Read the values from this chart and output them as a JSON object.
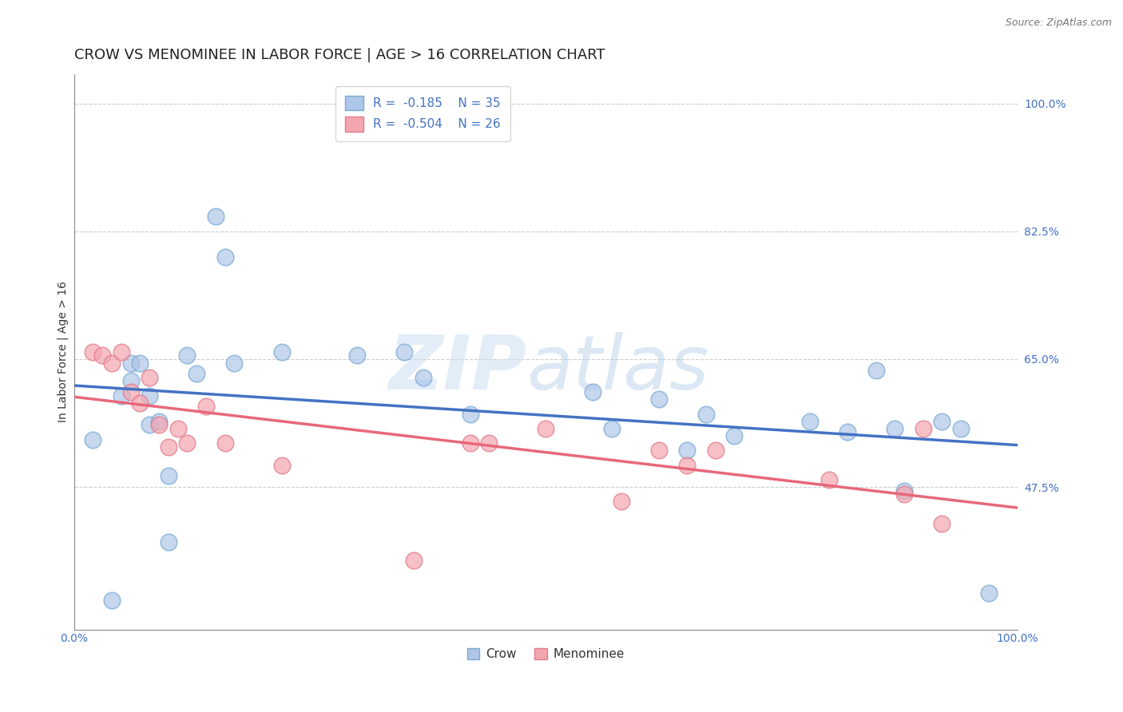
{
  "title": "CROW VS MENOMINEE IN LABOR FORCE | AGE > 16 CORRELATION CHART",
  "source_text": "Source: ZipAtlas.com",
  "ylabel": "In Labor Force | Age > 16",
  "xlim": [
    0.0,
    1.0
  ],
  "ylim": [
    0.28,
    1.04
  ],
  "yticks": [
    0.475,
    0.65,
    0.825,
    1.0
  ],
  "ytick_labels": [
    "47.5%",
    "65.0%",
    "82.5%",
    "100.0%"
  ],
  "xticks": [
    0.0,
    1.0
  ],
  "xtick_labels": [
    "0.0%",
    "100.0%"
  ],
  "crow_R": -0.185,
  "crow_N": 35,
  "menominee_R": -0.504,
  "menominee_N": 26,
  "crow_color": "#aec6e8",
  "crow_edge_color": "#7aaad4",
  "crow_line_color": "#4472c4",
  "menominee_color": "#f4a6b0",
  "menominee_edge_color": "#e07a8a",
  "menominee_line_color": "#e8687a",
  "background_color": "#ffffff",
  "watermark_color": "#d0e4f5",
  "crow_x": [
    0.02,
    0.04,
    0.05,
    0.06,
    0.06,
    0.07,
    0.08,
    0.08,
    0.09,
    0.1,
    0.1,
    0.12,
    0.13,
    0.15,
    0.16,
    0.17,
    0.22,
    0.3,
    0.35,
    0.37,
    0.42,
    0.55,
    0.57,
    0.62,
    0.65,
    0.67,
    0.7,
    0.78,
    0.82,
    0.85,
    0.87,
    0.88,
    0.92,
    0.94,
    0.97
  ],
  "crow_y": [
    0.54,
    0.32,
    0.6,
    0.645,
    0.62,
    0.645,
    0.56,
    0.6,
    0.565,
    0.49,
    0.4,
    0.655,
    0.63,
    0.845,
    0.79,
    0.645,
    0.66,
    0.655,
    0.66,
    0.625,
    0.575,
    0.605,
    0.555,
    0.595,
    0.525,
    0.575,
    0.545,
    0.565,
    0.55,
    0.635,
    0.555,
    0.47,
    0.565,
    0.555,
    0.33
  ],
  "menominee_x": [
    0.02,
    0.03,
    0.04,
    0.05,
    0.06,
    0.07,
    0.08,
    0.09,
    0.1,
    0.11,
    0.12,
    0.14,
    0.16,
    0.22,
    0.36,
    0.42,
    0.44,
    0.5,
    0.58,
    0.62,
    0.65,
    0.68,
    0.8,
    0.88,
    0.9,
    0.92
  ],
  "menominee_y": [
    0.66,
    0.655,
    0.645,
    0.66,
    0.605,
    0.59,
    0.625,
    0.56,
    0.53,
    0.555,
    0.535,
    0.585,
    0.535,
    0.505,
    0.375,
    0.535,
    0.535,
    0.555,
    0.455,
    0.525,
    0.505,
    0.525,
    0.485,
    0.465,
    0.555,
    0.425
  ],
  "title_fontsize": 13,
  "axis_label_fontsize": 10,
  "tick_fontsize": 10,
  "legend_fontsize": 11
}
